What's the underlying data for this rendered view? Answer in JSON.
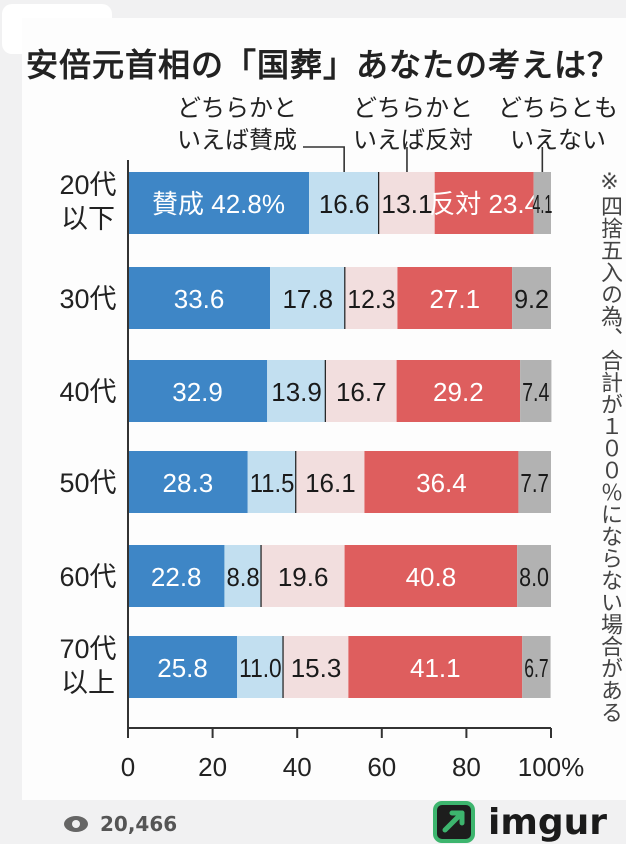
{
  "nav": {
    "collapse_icon": "chevron-down-icon"
  },
  "chart_data": {
    "type": "bar",
    "orientation": "horizontal",
    "stacked": true,
    "title": "安倍元首相の「国葬」あなたの考えは？",
    "categories": [
      "20代\n以下",
      "30代",
      "40代",
      "50代",
      "60代",
      "70代\n以上"
    ],
    "series": [
      {
        "name": "賛成",
        "values": [
          42.8,
          33.6,
          32.9,
          28.3,
          22.8,
          25.8
        ],
        "color": "#3e86c6"
      },
      {
        "name": "どちらかといえば賛成",
        "values": [
          16.6,
          17.8,
          13.9,
          11.5,
          8.8,
          11.0
        ],
        "color": "#c2dff0"
      },
      {
        "name": "どちらかといえば反対",
        "values": [
          13.1,
          12.3,
          16.7,
          16.1,
          19.6,
          15.3
        ],
        "color": "#f2dede"
      },
      {
        "name": "反対",
        "values": [
          23.4,
          27.1,
          29.2,
          36.4,
          40.8,
          41.1
        ],
        "color": "#de5e5e"
      },
      {
        "name": "どちらともいえない",
        "values": [
          4.1,
          9.2,
          7.4,
          7.7,
          8.0,
          6.7
        ],
        "color": "#b2b2b2"
      }
    ],
    "first_row_labels": [
      "賛成 42.8%",
      "16.6",
      "13.1",
      "反対 23.4",
      "4.1"
    ],
    "legend_labels": [
      [
        "どちらかと",
        "いえば賛成"
      ],
      [
        "どちらかと",
        "いえば反対"
      ],
      [
        "どちらとも",
        "いえない"
      ]
    ],
    "xlim": [
      0,
      100
    ],
    "x_ticks": [
      "0",
      "20",
      "40",
      "60",
      "80",
      "100%"
    ],
    "grid": false,
    "note": "※四捨五入の為、合計が１００％にならない場合がある"
  },
  "footer": {
    "views": "20,466",
    "brand": "imgur"
  }
}
